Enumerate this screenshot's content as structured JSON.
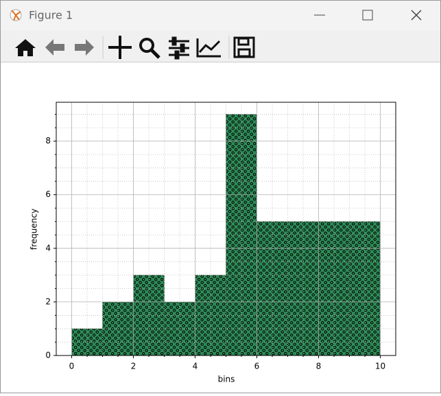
{
  "window": {
    "title": "Figure 1"
  },
  "chart_data": {
    "type": "histogram",
    "x_label": "bins",
    "y_label": "frequency",
    "bins": [
      0,
      1,
      2,
      3,
      4,
      5,
      6,
      7,
      8,
      9,
      10
    ],
    "values": [
      1,
      2,
      3,
      2,
      3,
      9,
      5,
      5,
      5,
      5
    ],
    "color": "#2e8b57",
    "hatch": "o",
    "xlim": [
      -0.5,
      10.5
    ],
    "xticks": [
      0,
      2,
      4,
      6,
      8,
      10
    ],
    "ylim": [
      0,
      9.45
    ],
    "yticks": [
      0,
      2,
      4,
      6,
      8
    ],
    "minor_xticks": [
      0.5,
      1,
      1.5,
      2.5,
      3,
      3.5,
      4.5,
      5,
      5.5,
      6.5,
      7,
      7.5,
      8.5,
      9,
      9.5
    ],
    "minor_yticks": [
      0.5,
      1,
      1.5,
      2.5,
      3,
      3.5,
      4.5,
      5,
      5.5,
      6.5,
      7,
      7.5,
      8.5,
      9
    ],
    "grid": true,
    "minor_grid": true
  }
}
